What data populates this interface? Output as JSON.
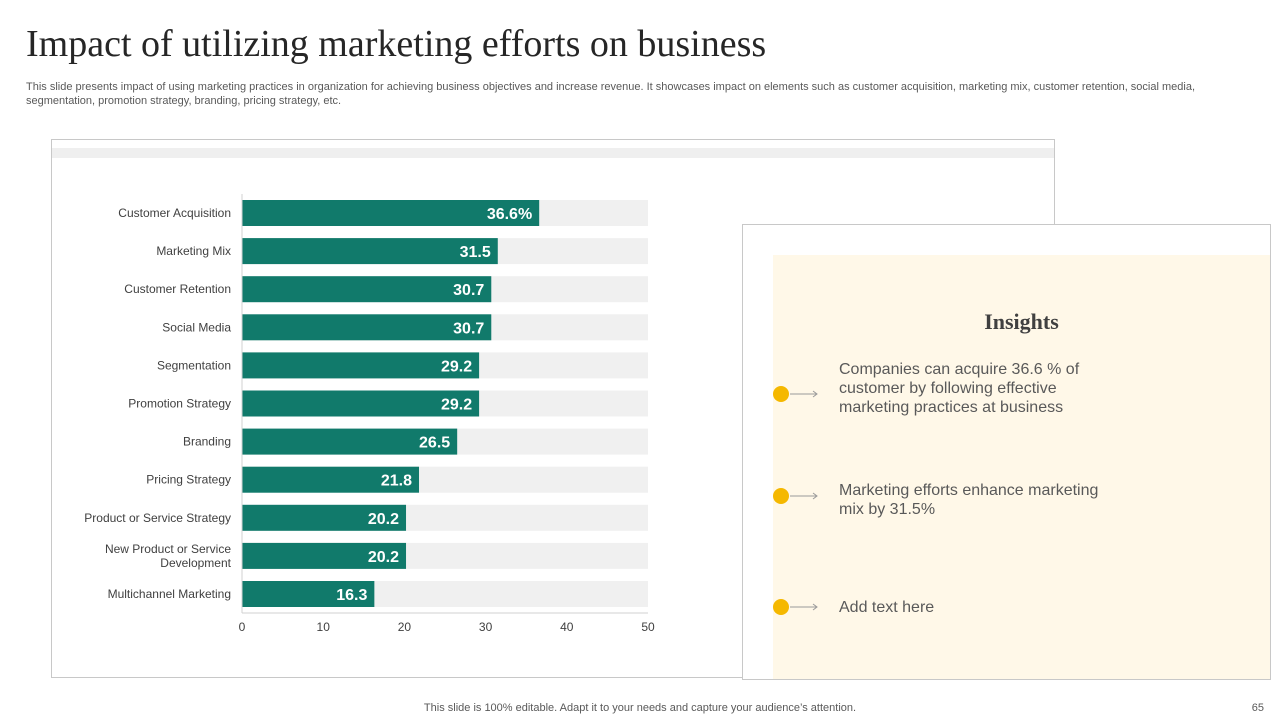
{
  "slide": {
    "title": "Impact of utilizing marketing efforts on business",
    "subtitle": "This slide presents impact of using marketing practices in organization for achieving business objectives and increase revenue. It showcases impact on elements such as customer acquisition, marketing mix, customer retention, social media, segmentation, promotion strategy, branding, pricing strategy, etc.",
    "footer_note": "This slide is 100% editable. Adapt it to your needs and capture your audience’s attention.",
    "page_number": "65"
  },
  "colors": {
    "bar": "#117a6b",
    "track": "#f0f0f0",
    "accent_dot": "#f5b800",
    "panel_bg": "#fff8e8"
  },
  "chart_data": {
    "type": "bar",
    "orientation": "horizontal",
    "categories": [
      "Customer Acquisition",
      "Marketing Mix",
      "Customer Retention",
      "Social Media",
      "Segmentation",
      "Promotion Strategy",
      "Branding",
      "Pricing Strategy",
      "Product or Service Strategy",
      "New Product or Service Development",
      "Multichannel Marketing"
    ],
    "category_lines": [
      [
        "Customer Acquisition"
      ],
      [
        "Marketing Mix"
      ],
      [
        "Customer Retention"
      ],
      [
        "Social Media"
      ],
      [
        "Segmentation"
      ],
      [
        "Promotion Strategy"
      ],
      [
        "Branding"
      ],
      [
        "Pricing Strategy"
      ],
      [
        "Product or Service Strategy"
      ],
      [
        "New Product or Service",
        "Development"
      ],
      [
        "Multichannel Marketing"
      ]
    ],
    "values": [
      36.6,
      31.5,
      30.7,
      30.7,
      29.2,
      29.2,
      26.5,
      21.8,
      20.2,
      20.2,
      16.3
    ],
    "data_labels": [
      "36.6%",
      "31.5",
      "30.7",
      "30.7",
      "29.2",
      "29.2",
      "26.5",
      "21.8",
      "20.2",
      "20.2",
      "16.3"
    ],
    "xlim": [
      0,
      50
    ],
    "x_ticks": [
      0,
      10,
      20,
      30,
      40,
      50
    ],
    "title": "",
    "xlabel": "",
    "ylabel": "",
    "grid": false,
    "legend": "none"
  },
  "insights": {
    "heading": "Insights",
    "items": [
      {
        "text": "Companies can acquire 36.6 % of customer by following effective marketing practices at business"
      },
      {
        "text": "Marketing efforts enhance marketing mix by 31.5%"
      },
      {
        "text": "Add text here"
      }
    ]
  }
}
